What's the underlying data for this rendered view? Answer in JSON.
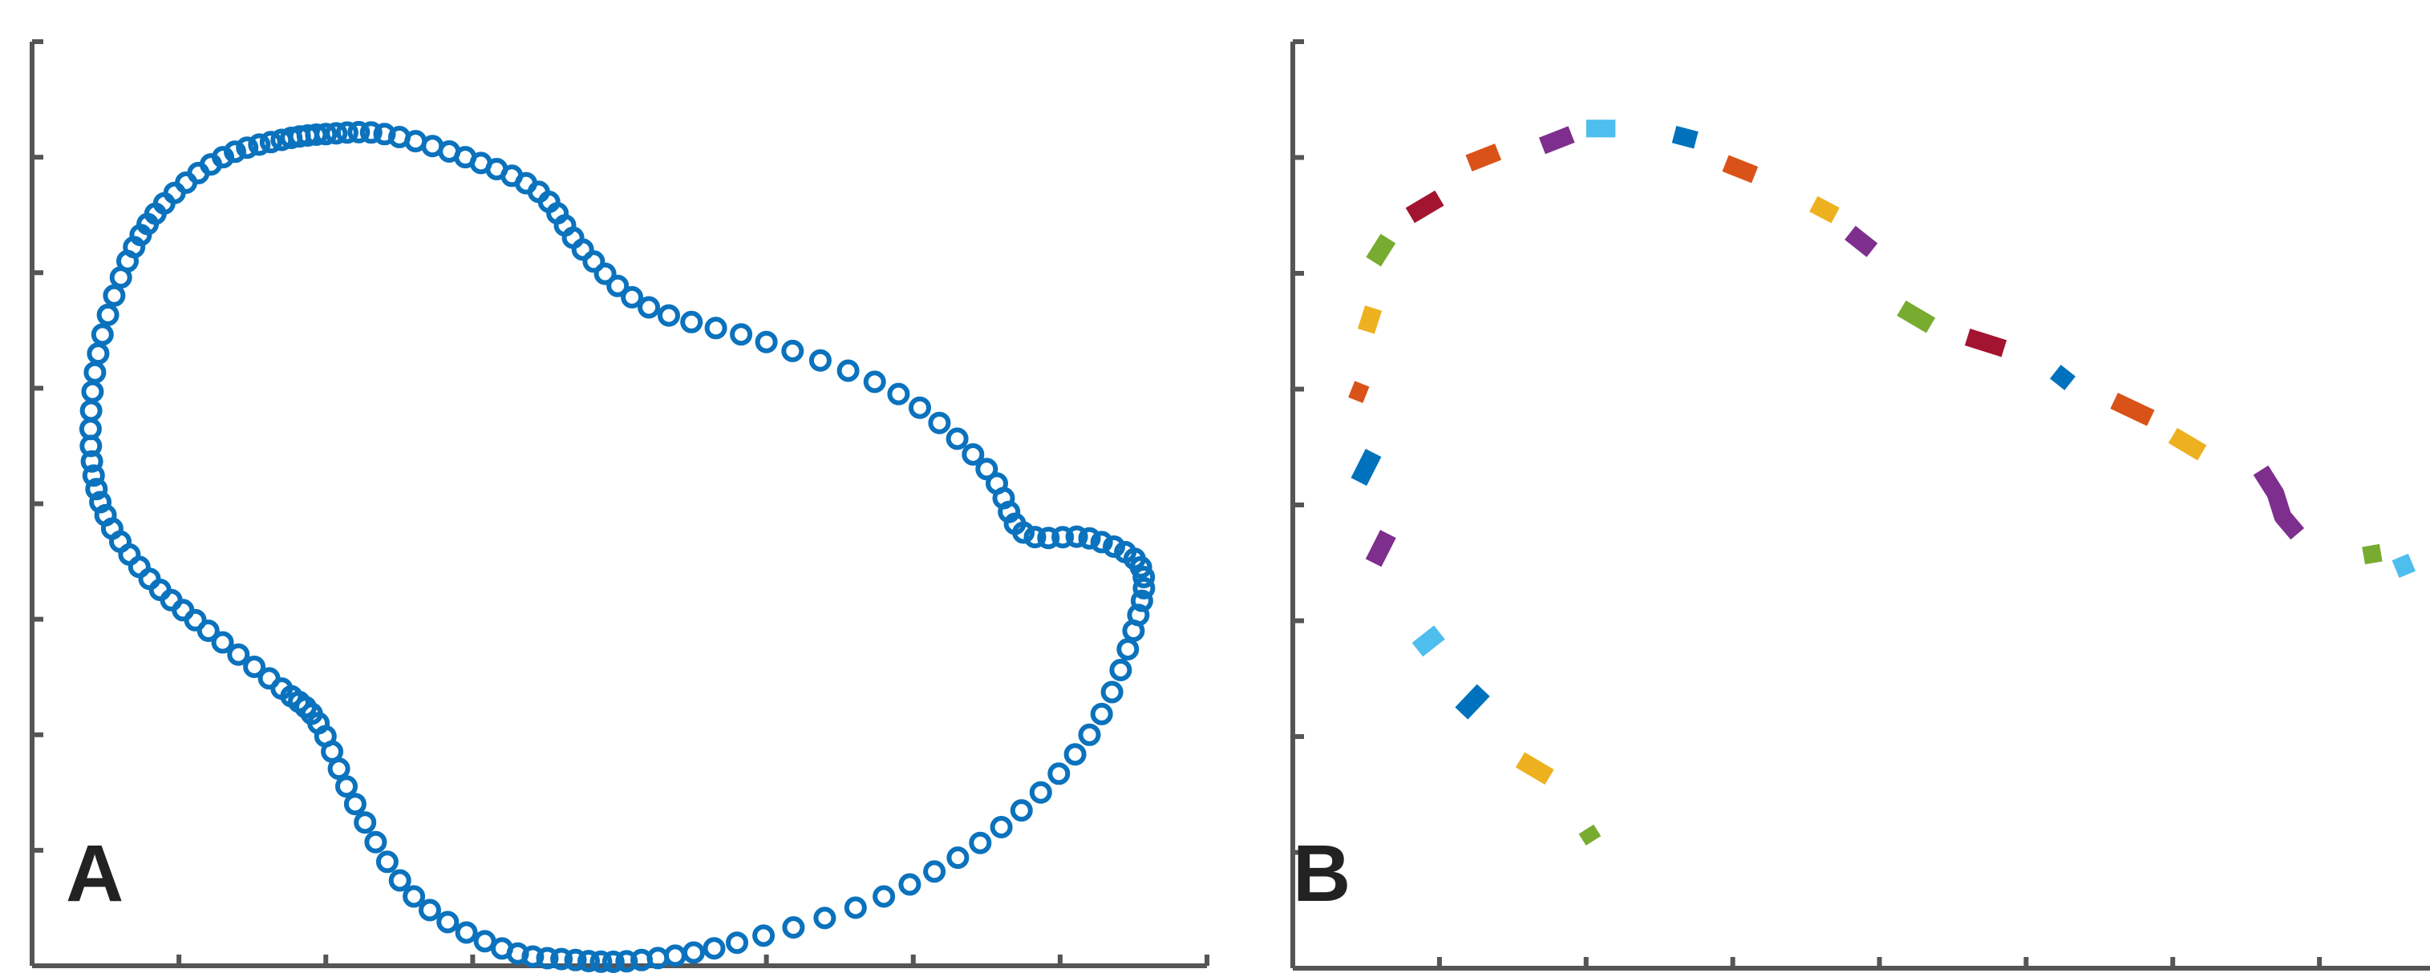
{
  "colors": {
    "axis": "#555555",
    "panel_a_marker": "#0b72bd",
    "palette": [
      "#0072bd",
      "#d95319",
      "#edb120",
      "#7e2f8e",
      "#77ac30",
      "#4dbeee",
      "#a2142f"
    ]
  },
  "chart_data": [
    {
      "type": "scatter",
      "panel_label": "A",
      "marker": "open-circle",
      "xlim": [
        0,
        8
      ],
      "ylim": [
        0,
        8
      ],
      "xticks": [
        1,
        2,
        3,
        4,
        5,
        6,
        7,
        8
      ],
      "yticks": [
        1,
        2,
        3,
        4,
        5,
        6,
        7,
        8
      ],
      "tick_labels_shown": false,
      "grid": false,
      "closed_outline_vertices": [
        [
          2.0,
          7.2
        ],
        [
          2.4,
          7.2
        ],
        [
          2.95,
          7.0
        ],
        [
          3.45,
          6.7
        ],
        [
          3.75,
          6.2
        ],
        [
          4.2,
          5.7
        ],
        [
          5.0,
          5.4
        ],
        [
          5.9,
          4.95
        ],
        [
          6.5,
          4.3
        ],
        [
          6.75,
          3.75
        ],
        [
          7.2,
          3.7
        ],
        [
          7.55,
          3.45
        ],
        [
          7.5,
          2.9
        ],
        [
          7.2,
          2.0
        ],
        [
          6.6,
          1.2
        ],
        [
          5.8,
          0.6
        ],
        [
          4.8,
          0.2
        ],
        [
          4.15,
          0.05
        ],
        [
          3.7,
          0.05
        ],
        [
          3.2,
          0.15
        ],
        [
          2.6,
          0.6
        ],
        [
          2.2,
          1.4
        ],
        [
          1.95,
          2.1
        ],
        [
          1.7,
          2.4
        ],
        [
          1.2,
          2.9
        ],
        [
          0.8,
          3.35
        ],
        [
          0.5,
          3.9
        ],
        [
          0.4,
          4.5
        ],
        [
          0.45,
          5.3
        ],
        [
          0.65,
          6.1
        ],
        [
          0.9,
          6.6
        ],
        [
          1.3,
          7.0
        ],
        [
          1.7,
          7.15
        ]
      ]
    },
    {
      "type": "line",
      "panel_label": "B",
      "style": "dashed-segments",
      "xlim": [
        0,
        8
      ],
      "ylim": [
        0,
        8
      ],
      "xticks": [
        1,
        2,
        3,
        4,
        5,
        6,
        7,
        8
      ],
      "yticks": [
        1,
        2,
        3,
        4,
        5,
        6,
        7,
        8
      ],
      "tick_labels_shown": false,
      "grid": false,
      "segments": [
        {
          "x": [
            0.8,
            1.0
          ],
          "y": [
            6.5,
            6.65
          ],
          "color_index": 6
        },
        {
          "x": [
            1.2,
            1.4
          ],
          "y": [
            6.95,
            7.05
          ],
          "color_index": 1
        },
        {
          "x": [
            1.7,
            1.9
          ],
          "y": [
            7.1,
            7.2
          ],
          "color_index": 3
        },
        {
          "x": [
            2.0,
            2.2
          ],
          "y": [
            7.25,
            7.25
          ],
          "color_index": 5
        },
        {
          "x": [
            2.6,
            2.75
          ],
          "y": [
            7.2,
            7.15
          ],
          "color_index": 0
        },
        {
          "x": [
            2.95,
            3.15
          ],
          "y": [
            6.95,
            6.85
          ],
          "color_index": 1
        },
        {
          "x": [
            3.55,
            3.7
          ],
          "y": [
            6.6,
            6.5
          ],
          "color_index": 2
        },
        {
          "x": [
            3.8,
            3.95
          ],
          "y": [
            6.35,
            6.2
          ],
          "color_index": 3
        },
        {
          "x": [
            4.15,
            4.35
          ],
          "y": [
            5.7,
            5.55
          ],
          "color_index": 4
        },
        {
          "x": [
            4.6,
            4.85
          ],
          "y": [
            5.45,
            5.35
          ],
          "color_index": 6
        },
        {
          "x": [
            5.2,
            5.3
          ],
          "y": [
            5.15,
            5.05
          ],
          "color_index": 0
        },
        {
          "x": [
            5.6,
            5.85
          ],
          "y": [
            4.9,
            4.75
          ],
          "color_index": 1
        },
        {
          "x": [
            6.0,
            6.2
          ],
          "y": [
            4.6,
            4.45
          ],
          "color_index": 2
        },
        {
          "x": [
            6.6,
            6.7,
            6.75,
            6.85
          ],
          "y": [
            4.3,
            4.1,
            3.9,
            3.75
          ],
          "color_index": 3
        },
        {
          "x": [
            7.35,
            7.37
          ],
          "y": [
            3.65,
            3.5
          ],
          "color_index": 4
        },
        {
          "x": [
            7.55,
            7.6
          ],
          "y": [
            3.55,
            3.4
          ],
          "color_index": 5
        },
        {
          "x": [
            0.5,
            0.55
          ],
          "y": [
            5.5,
            5.7
          ],
          "color_index": 2
        },
        {
          "x": [
            0.55,
            0.65
          ],
          "y": [
            6.1,
            6.3
          ],
          "color_index": 4
        },
        {
          "x": [
            0.4,
            0.5
          ],
          "y": [
            5.0,
            4.95
          ],
          "color_index": 1
        },
        {
          "x": [
            0.45,
            0.55
          ],
          "y": [
            4.2,
            4.45
          ],
          "color_index": 0
        },
        {
          "x": [
            0.55,
            0.65
          ],
          "y": [
            3.5,
            3.75
          ],
          "color_index": 3
        },
        {
          "x": [
            0.85,
            1.0
          ],
          "y": [
            2.75,
            2.9
          ],
          "color_index": 5
        },
        {
          "x": [
            1.15,
            1.3
          ],
          "y": [
            2.2,
            2.4
          ],
          "color_index": 0
        },
        {
          "x": [
            1.55,
            1.75
          ],
          "y": [
            1.8,
            1.65
          ],
          "color_index": 2
        },
        {
          "x": [
            2.0,
            2.05
          ],
          "y": [
            1.2,
            1.1
          ],
          "color_index": 4
        }
      ]
    }
  ]
}
